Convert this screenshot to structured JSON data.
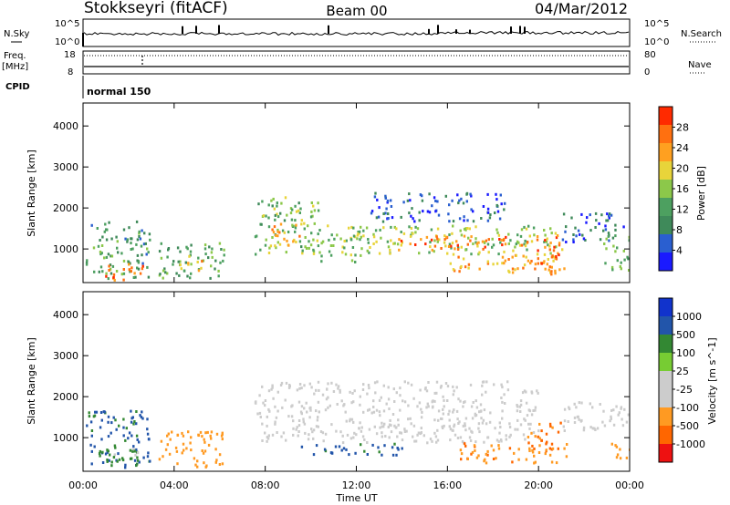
{
  "header": {
    "station": "Stokkseyri (fitACF)",
    "beam": "Beam 00",
    "date": "04/Mar/2012"
  },
  "status": {
    "nsky_label": "N.Sky",
    "nsky_ticks": [
      "10^5",
      "10^0"
    ],
    "nsearch_label": "N.Search",
    "nsearch_ticks": [
      "10^5",
      "10^0"
    ],
    "freq_label": "Freq.",
    "freq_unit": "[MHz]",
    "freq_ticks": [
      "18",
      "8"
    ],
    "nave_label": "Nave",
    "nave_ticks": [
      "80",
      "0"
    ],
    "cpid_label": "CPID",
    "cpid_text": "normal 150"
  },
  "power_colorbar": {
    "label": "Power [dB]",
    "colors": [
      "#1a1aff",
      "#2a5fd0",
      "#3f8a5a",
      "#4da060",
      "#8cc84a",
      "#e8d43a",
      "#ffa020",
      "#ff7010",
      "#ff2a00"
    ],
    "ticks": [
      "4",
      "8",
      "12",
      "16",
      "20",
      "24",
      "28"
    ]
  },
  "velocity_colorbar": {
    "label": "Velocity [m s^-1]",
    "colors": [
      "#ee1111",
      "#ff6600",
      "#ff9a22",
      "#cccccc",
      "#cccccc",
      "#77cc33",
      "#338833",
      "#2255aa",
      "#1133cc"
    ],
    "ticks": [
      "-1000",
      "-500",
      "-100",
      "-25",
      "25",
      "100",
      "500",
      "1000"
    ]
  },
  "chart_data": [
    {
      "type": "heatmap",
      "title": "Power",
      "xlabel": "Time UT",
      "ylabel": "Slant Range [km]",
      "x_ticks": [
        "00:00",
        "04:00",
        "08:00",
        "12:00",
        "16:00",
        "20:00",
        "00:00"
      ],
      "y_ticks": [
        "1000",
        "2000",
        "3000",
        "4000"
      ],
      "xlim_hours": [
        0,
        24
      ],
      "ylim_km": [
        180,
        4560
      ],
      "value_range_db": [
        3,
        30
      ],
      "blobs": [
        {
          "t0": 0.1,
          "t1": 2.9,
          "r0": 300,
          "r1": 1700,
          "val": 12
        },
        {
          "t0": 0.9,
          "t1": 2.6,
          "r0": 250,
          "r1": 700,
          "val": 26
        },
        {
          "t0": 3.3,
          "t1": 6.2,
          "r0": 300,
          "r1": 1200,
          "val": 13
        },
        {
          "t0": 4.2,
          "t1": 5.2,
          "r0": 500,
          "r1": 900,
          "val": 22
        },
        {
          "t0": 7.5,
          "t1": 10.3,
          "r0": 900,
          "r1": 2300,
          "val": 15
        },
        {
          "t0": 8.2,
          "t1": 9.7,
          "r0": 1100,
          "r1": 1700,
          "val": 22
        },
        {
          "t0": 10.2,
          "t1": 12.2,
          "r0": 700,
          "r1": 1600,
          "val": 16
        },
        {
          "t0": 11.7,
          "t1": 21.0,
          "r0": 900,
          "r1": 1600,
          "val": 17
        },
        {
          "t0": 13.8,
          "t1": 19.5,
          "r0": 1000,
          "r1": 1350,
          "val": 25
        },
        {
          "t0": 12.5,
          "t1": 18.5,
          "r0": 1700,
          "r1": 2400,
          "val": 8
        },
        {
          "t0": 16.0,
          "t1": 21.2,
          "r0": 450,
          "r1": 900,
          "val": 22
        },
        {
          "t0": 19.8,
          "t1": 21.0,
          "r0": 400,
          "r1": 1500,
          "val": 25
        },
        {
          "t0": 21.0,
          "t1": 23.7,
          "r0": 1200,
          "r1": 1900,
          "val": 8
        },
        {
          "t0": 22.8,
          "t1": 24.0,
          "r0": 500,
          "r1": 1400,
          "val": 14
        }
      ]
    },
    {
      "type": "heatmap",
      "title": "Velocity",
      "xlabel": "Time UT",
      "ylabel": "Slant Range [km]",
      "x_ticks": [
        "00:00",
        "04:00",
        "08:00",
        "12:00",
        "16:00",
        "20:00",
        "00:00"
      ],
      "y_ticks": [
        "1000",
        "2000",
        "3000",
        "4000"
      ],
      "xlim_hours": [
        0,
        24
      ],
      "ylim_km": [
        180,
        4560
      ],
      "value_range_ms": [
        -1000,
        1000
      ],
      "blobs": [
        {
          "t0": 0.1,
          "t1": 2.9,
          "r0": 300,
          "r1": 1700,
          "val": 120
        },
        {
          "t0": 0.5,
          "t1": 2.4,
          "r0": 250,
          "r1": 800,
          "val": 40
        },
        {
          "t0": 3.3,
          "t1": 6.2,
          "r0": 300,
          "r1": 1200,
          "val": -150
        },
        {
          "t0": 7.5,
          "t1": 20.0,
          "r0": 900,
          "r1": 2400,
          "val": 0
        },
        {
          "t0": 9.5,
          "t1": 14.0,
          "r0": 600,
          "r1": 900,
          "val": 150
        },
        {
          "t0": 16.5,
          "t1": 21.2,
          "r0": 400,
          "r1": 900,
          "val": -400
        },
        {
          "t0": 19.5,
          "t1": 21.0,
          "r0": 700,
          "r1": 1400,
          "val": -450
        },
        {
          "t0": 21.0,
          "t1": 24.0,
          "r0": 1200,
          "r1": 1900,
          "val": 0
        },
        {
          "t0": 23.0,
          "t1": 24.0,
          "r0": 500,
          "r1": 900,
          "val": -300
        }
      ]
    }
  ]
}
